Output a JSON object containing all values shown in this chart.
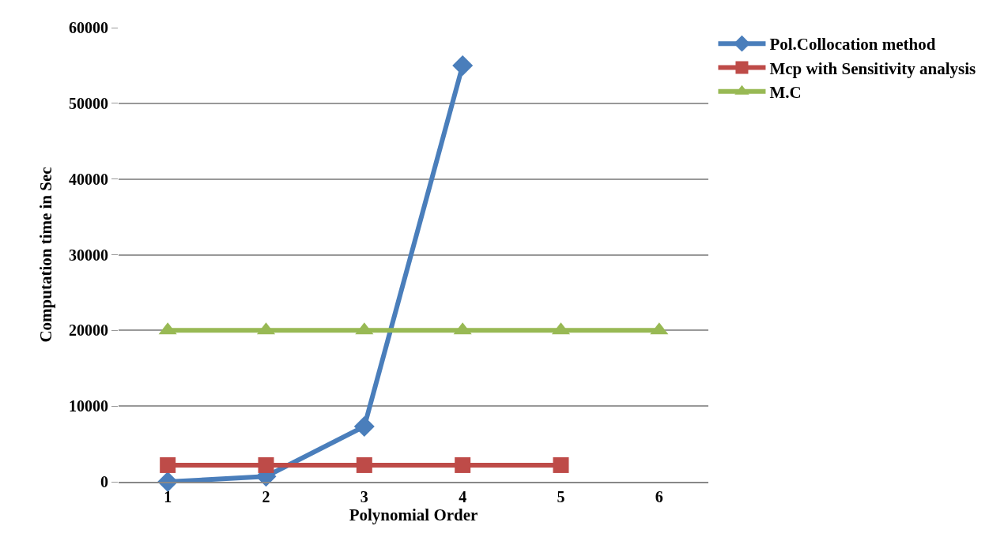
{
  "chart_data": {
    "type": "line",
    "xlabel": "Polynomial Order",
    "ylabel": "Computation time in Sec",
    "categories": [
      "1",
      "2",
      "3",
      "4",
      "5",
      "6"
    ],
    "series": [
      {
        "name": "Pol.Collocation method",
        "color": "#4a7ebb",
        "marker": "diamond",
        "values": [
          0,
          700,
          7300,
          55000,
          null,
          null
        ]
      },
      {
        "name": "Mcp with Sensitivity analysis",
        "color": "#be4b48",
        "marker": "square",
        "values": [
          2200,
          2200,
          2200,
          2200,
          2200,
          null
        ]
      },
      {
        "name": "M.C",
        "color": "#98b954",
        "marker": "triangle",
        "values": [
          20000,
          20000,
          20000,
          20000,
          20000,
          20000
        ]
      }
    ],
    "ylim": [
      0,
      60000
    ],
    "yticks": [
      0,
      10000,
      20000,
      30000,
      40000,
      50000,
      60000
    ],
    "grid": "y",
    "legend": "right",
    "line_style": "solid"
  }
}
